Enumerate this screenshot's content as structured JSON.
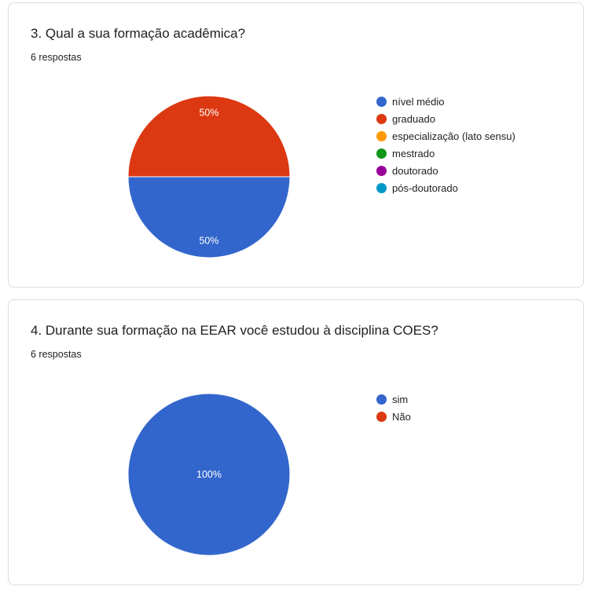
{
  "questions": [
    {
      "title": "3. Qual a sua formação acadêmica?",
      "responses": "6 respostas"
    },
    {
      "title": "4. Durante sua formação na EEAR você estudou à disciplina COES?",
      "responses": "6 respostas"
    }
  ],
  "chart_data": [
    {
      "type": "pie",
      "title": "3. Qual a sua formação acadêmica?",
      "categories": [
        "nível médio",
        "graduado",
        "especialização (lato sensu)",
        "mestrado",
        "doutorado",
        "pós-doutorado"
      ],
      "values": [
        3,
        3,
        0,
        0,
        0,
        0
      ],
      "percent_labels": [
        "50%",
        "50%",
        "",
        "",
        "",
        ""
      ],
      "colors": [
        "#3366cc",
        "#dc3912",
        "#ff9900",
        "#109618",
        "#990099",
        "#0099c6"
      ],
      "legend": "right"
    },
    {
      "type": "pie",
      "title": "4. Durante sua formação na EEAR você estudou à disciplina COES?",
      "categories": [
        "sim",
        "Não"
      ],
      "values": [
        6,
        0
      ],
      "percent_labels": [
        "100%",
        ""
      ],
      "colors": [
        "#3366cc",
        "#dc3912"
      ],
      "legend": "right"
    }
  ]
}
